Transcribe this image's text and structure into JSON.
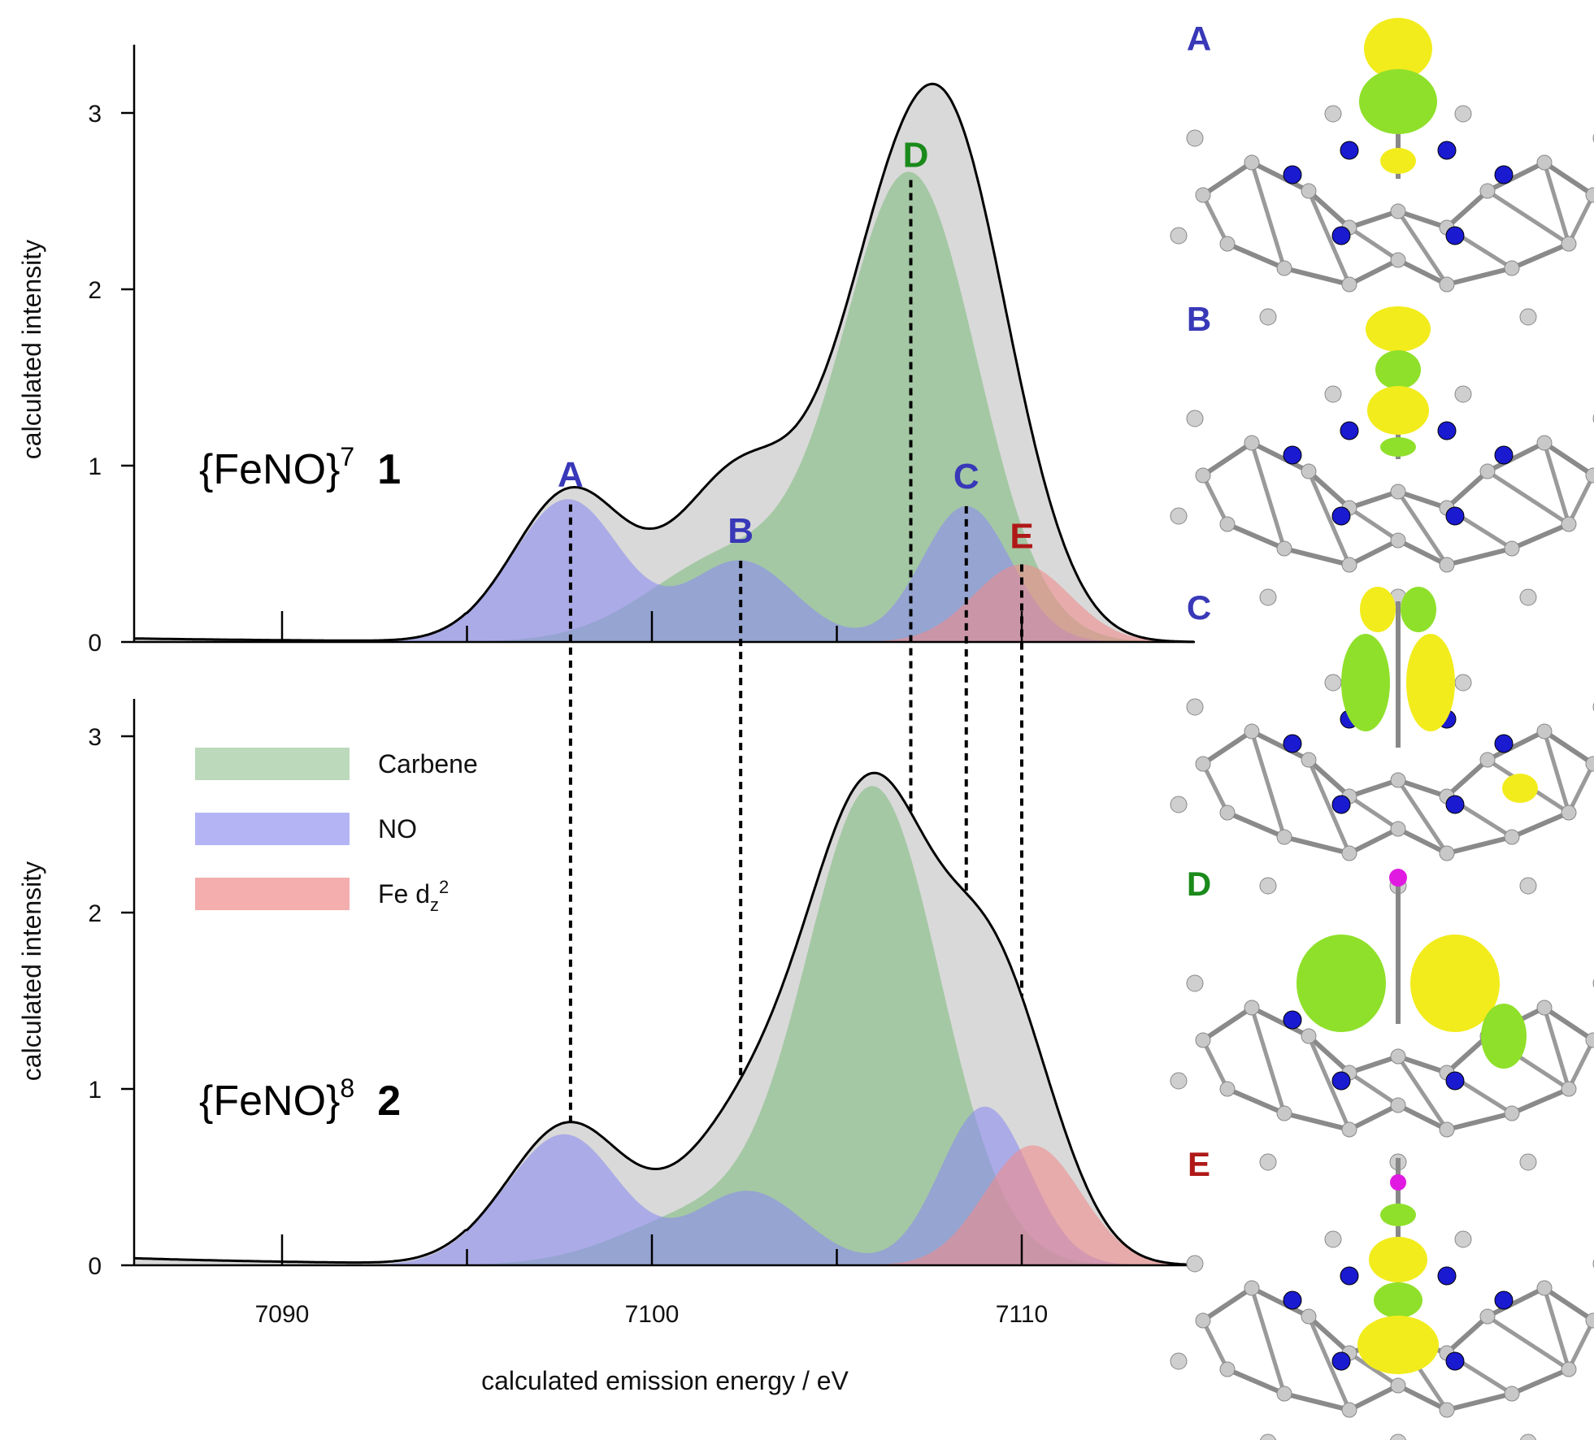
{
  "colors": {
    "total": "#d9d9d9",
    "carbene": "#8fc08f",
    "no": "#8c8cf0",
    "fe_dz2": "#f08c8c",
    "label_blue": "#3838b8",
    "label_green": "#1a8a1a",
    "label_red": "#b01818"
  },
  "xlabel": "calculated emission energy / eV",
  "ylabel": "calculated intensity",
  "legend": {
    "position": "upper-left of lower panel",
    "items": [
      {
        "key": "carbene",
        "label": "Carbene"
      },
      {
        "key": "no",
        "label": "NO"
      },
      {
        "key": "fe_dz2",
        "label": "Fe d",
        "sub": "z",
        "sup": "2"
      }
    ]
  },
  "panels": [
    {
      "name": "{FeNO}",
      "sup": "7",
      "number": "1"
    },
    {
      "name": "{FeNO}",
      "sup": "8",
      "number": "2"
    }
  ],
  "orbitals": [
    {
      "label": "A",
      "color": "blue"
    },
    {
      "label": "B",
      "color": "blue"
    },
    {
      "label": "C",
      "color": "blue"
    },
    {
      "label": "D",
      "color": "green"
    },
    {
      "label": "E",
      "color": "red"
    }
  ],
  "chart_data": [
    {
      "type": "area",
      "panel": "{FeNO}7 1",
      "xlim": [
        7086,
        7115
      ],
      "ylim": [
        0,
        3.4
      ],
      "x_ticks": [
        7090,
        7100,
        7110
      ],
      "y_ticks": [
        0,
        1,
        2,
        3
      ],
      "peaks": [
        {
          "label": "A",
          "x": 7097.8,
          "y": 0.78,
          "color": "blue"
        },
        {
          "label": "B",
          "x": 7102.4,
          "y": 0.46,
          "color": "blue"
        },
        {
          "label": "C",
          "x": 7108.5,
          "y": 0.77,
          "color": "blue"
        },
        {
          "label": "D",
          "x": 7107.0,
          "y": 2.62,
          "color": "green"
        },
        {
          "label": "E",
          "x": 7110.0,
          "y": 0.44,
          "color": "red"
        }
      ],
      "series": [
        {
          "name": "total",
          "components": [
            {
              "center": 7097.8,
              "height": 0.78,
              "sigma": 1.4
            },
            {
              "center": 7096.0,
              "height": 0.08,
              "sigma": 1.2
            },
            {
              "center": 7102.2,
              "height": 0.49,
              "sigma": 2.2
            },
            {
              "center": 7102.4,
              "height": 0.46,
              "sigma": 1.45
            },
            {
              "center": 7107.0,
              "height": 2.62,
              "sigma": 1.8
            },
            {
              "center": 7108.5,
              "height": 0.77,
              "sigma": 1.2
            },
            {
              "center": 7110.0,
              "height": 0.44,
              "sigma": 1.3
            }
          ],
          "baseline_tail": 0.02
        },
        {
          "name": "Carbene",
          "components": [
            {
              "center": 7102.2,
              "height": 0.49,
              "sigma": 2.2
            },
            {
              "center": 7107.0,
              "height": 2.62,
              "sigma": 1.8
            }
          ]
        },
        {
          "name": "NO",
          "components": [
            {
              "center": 7097.8,
              "height": 0.78,
              "sigma": 1.4
            },
            {
              "center": 7096.0,
              "height": 0.08,
              "sigma": 1.2
            },
            {
              "center": 7102.4,
              "height": 0.46,
              "sigma": 1.45
            },
            {
              "center": 7108.5,
              "height": 0.77,
              "sigma": 1.2
            }
          ]
        },
        {
          "name": "Fe dz2",
          "components": [
            {
              "center": 7110.0,
              "height": 0.44,
              "sigma": 1.3
            }
          ]
        }
      ]
    },
    {
      "type": "area",
      "panel": "{FeNO}8 2",
      "xlim": [
        7086,
        7115
      ],
      "ylim": [
        0,
        3.4
      ],
      "x_ticks": [
        7090,
        7100,
        7110
      ],
      "y_ticks": [
        0,
        1,
        2,
        3
      ],
      "series": [
        {
          "name": "total",
          "components": [
            {
              "center": 7097.7,
              "height": 0.72,
              "sigma": 1.45
            },
            {
              "center": 7095.7,
              "height": 0.08,
              "sigma": 1.2
            },
            {
              "center": 7101.5,
              "height": 0.3,
              "sigma": 2.2
            },
            {
              "center": 7102.6,
              "height": 0.42,
              "sigma": 1.5
            },
            {
              "center": 7106.0,
              "height": 2.68,
              "sigma": 1.8
            },
            {
              "center": 7109.0,
              "height": 0.9,
              "sigma": 1.2
            },
            {
              "center": 7110.3,
              "height": 0.68,
              "sigma": 1.3
            }
          ],
          "baseline_tail": 0.04
        },
        {
          "name": "Carbene",
          "components": [
            {
              "center": 7101.5,
              "height": 0.3,
              "sigma": 2.2
            },
            {
              "center": 7106.0,
              "height": 2.68,
              "sigma": 1.8
            }
          ]
        },
        {
          "name": "NO",
          "components": [
            {
              "center": 7097.7,
              "height": 0.72,
              "sigma": 1.45
            },
            {
              "center": 7095.7,
              "height": 0.08,
              "sigma": 1.2
            },
            {
              "center": 7102.6,
              "height": 0.42,
              "sigma": 1.5
            },
            {
              "center": 7109.0,
              "height": 0.9,
              "sigma": 1.2
            }
          ]
        },
        {
          "name": "Fe dz2",
          "components": [
            {
              "center": 7110.3,
              "height": 0.68,
              "sigma": 1.3
            }
          ]
        }
      ]
    }
  ]
}
